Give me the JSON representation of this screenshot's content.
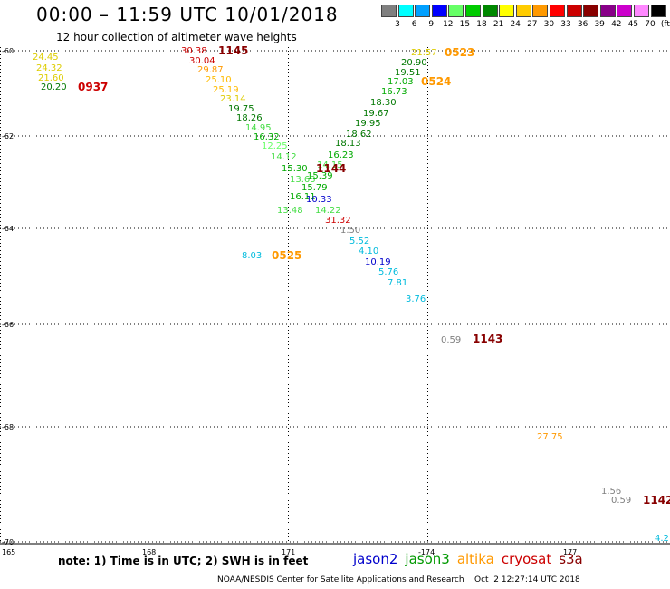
{
  "title": "00:00 – 11:59 UTC 10/01/2018",
  "subtitle": "12 hour collection of altimeter wave heights",
  "legend": {
    "colors": [
      "#808080",
      "#00ffff",
      "#00a0ff",
      "#0000ff",
      "#66ff66",
      "#00cc00",
      "#008800",
      "#ffff00",
      "#ffcc00",
      "#ff9900",
      "#ff0000",
      "#cc0000",
      "#880000",
      "#880088",
      "#cc00cc",
      "#ff88ff",
      "#000000"
    ],
    "labels": [
      "3",
      "6",
      "9",
      "12",
      "15",
      "18",
      "21",
      "24",
      "27",
      "30",
      "33",
      "36",
      "39",
      "42",
      "45",
      "70",
      "(ft)"
    ]
  },
  "axes": {
    "lat_labels": [
      "-60",
      "-62",
      "-64",
      "-66",
      "-68",
      "-70"
    ],
    "lon_labels": [
      "165",
      "168",
      "171",
      "-174",
      "177"
    ]
  },
  "note": "note: 1) Time is in UTC; 2) SWH is in feet",
  "satellites": [
    {
      "name": "jason2",
      "color": "#0000cc"
    },
    {
      "name": "jason3",
      "color": "#009900"
    },
    {
      "name": "altika",
      "color": "#ff9900"
    },
    {
      "name": "cryosat",
      "color": "#cc0000"
    },
    {
      "name": "s3a",
      "color": "#880000"
    }
  ],
  "credit": "NOAA/NESDIS Center for Satellite Applications and Research    Oct  2 12:27:14 UTC 2018",
  "observations": [
    {
      "value": "24.45",
      "color": "#ddcc00"
    },
    {
      "value": "24.32",
      "color": "#ddcc00"
    },
    {
      "value": "21.60",
      "color": "#ddcc00"
    },
    {
      "value": "20.20",
      "color": "#007700"
    },
    {
      "value": "30.38",
      "color": "#cc0000"
    },
    {
      "value": "30.04",
      "color": "#cc0000"
    },
    {
      "value": "29.87",
      "color": "#ff9900"
    },
    {
      "value": "25.10",
      "color": "#ffbb00"
    },
    {
      "value": "25.19",
      "color": "#ffbb00"
    },
    {
      "value": "23.14",
      "color": "#ddcc00"
    },
    {
      "value": "19.75",
      "color": "#007700"
    },
    {
      "value": "18.26",
      "color": "#007700"
    },
    {
      "value": "14.95",
      "color": "#44dd44"
    },
    {
      "value": "16.32",
      "color": "#00aa00"
    },
    {
      "value": "12.25",
      "color": "#66ff66"
    },
    {
      "value": "14.12",
      "color": "#44dd44"
    },
    {
      "value": "15.30",
      "color": "#00aa00"
    },
    {
      "value": "13.63",
      "color": "#44dd44"
    },
    {
      "value": "15.39",
      "color": "#00aa00"
    },
    {
      "value": "15.79",
      "color": "#00aa00"
    },
    {
      "value": "16.11",
      "color": "#00aa00"
    },
    {
      "value": "10.33",
      "color": "#0000cc"
    },
    {
      "value": "13.48",
      "color": "#44dd44"
    },
    {
      "value": "14.22",
      "color": "#44dd44"
    },
    {
      "value": "31.32",
      "color": "#cc0000"
    },
    {
      "value": "1.50",
      "color": "#808080"
    },
    {
      "value": "5.52",
      "color": "#00bbdd"
    },
    {
      "value": "4.10",
      "color": "#00bbdd"
    },
    {
      "value": "10.19",
      "color": "#0000cc"
    },
    {
      "value": "5.76",
      "color": "#00bbdd"
    },
    {
      "value": "7.81",
      "color": "#00bbdd"
    },
    {
      "value": "3.76",
      "color": "#00bbdd"
    },
    {
      "value": "8.03",
      "color": "#00bbdd"
    },
    {
      "value": "21.57",
      "color": "#ddcc00"
    },
    {
      "value": "20.90",
      "color": "#007700"
    },
    {
      "value": "19.51",
      "color": "#007700"
    },
    {
      "value": "17.03",
      "color": "#00aa00"
    },
    {
      "value": "16.73",
      "color": "#00aa00"
    },
    {
      "value": "18.30",
      "color": "#007700"
    },
    {
      "value": "19.67",
      "color": "#007700"
    },
    {
      "value": "19.95",
      "color": "#007700"
    },
    {
      "value": "18.62",
      "color": "#007700"
    },
    {
      "value": "18.13",
      "color": "#007700"
    },
    {
      "value": "16.23",
      "color": "#00aa00"
    },
    {
      "value": "14.15",
      "color": "#44dd44"
    },
    {
      "value": "0.59",
      "color": "#808080"
    },
    {
      "value": "27.75",
      "color": "#ff9900"
    },
    {
      "value": "1.56",
      "color": "#808080"
    },
    {
      "value": "0.59",
      "color": "#808080"
    },
    {
      "value": "4.2",
      "color": "#00bbdd"
    }
  ],
  "pass_times": [
    {
      "time": "0937",
      "color": "#cc0000"
    },
    {
      "time": "1145",
      "color": "#880000"
    },
    {
      "time": "1144",
      "color": "#880000"
    },
    {
      "time": "0525",
      "color": "#ff9900"
    },
    {
      "time": "0523",
      "color": "#ff9900"
    },
    {
      "time": "0524",
      "color": "#ff9900"
    },
    {
      "time": "1143",
      "color": "#880000"
    },
    {
      "time": "1142",
      "color": "#880000"
    }
  ]
}
